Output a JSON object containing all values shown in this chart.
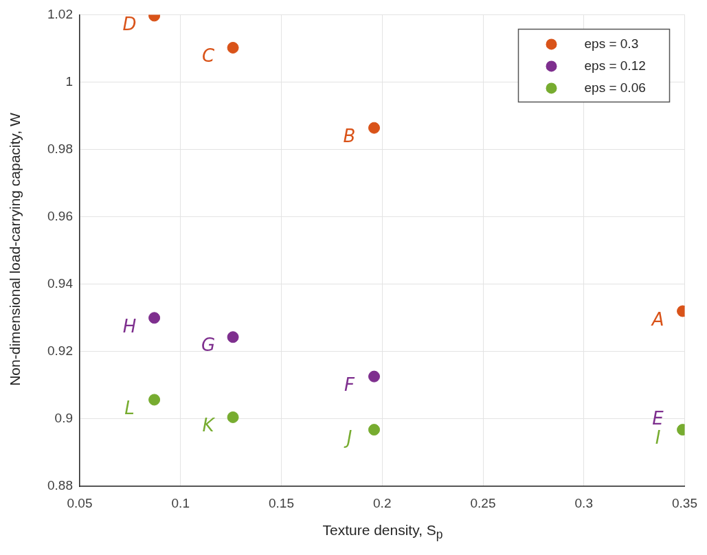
{
  "chart_data": {
    "type": "scatter",
    "xlabel": "Texture density, S$_{p}$",
    "ylabel": "Non-dimensional load-carrying capacity, W",
    "series": [
      {
        "name": "eps = 0.3",
        "color": "#d95319",
        "x": [
          0.349,
          0.196,
          0.126,
          0.087
        ],
        "values": [
          0.932,
          0.9864,
          1.0102,
          1.0197
        ],
        "value_labels": [
          "A",
          "B",
          "C",
          "D"
        ]
      },
      {
        "name": "eps = 0.12",
        "color": "#7e2f8e",
        "x": [
          0.196,
          0.126,
          0.087
        ],
        "values": [
          0.9126,
          0.9243,
          0.93
        ],
        "value_labels": [
          "F",
          "G",
          "H"
        ]
      },
      {
        "name": "eps = 0.06",
        "color": "#77ac30",
        "x": [
          0.349,
          0.196,
          0.126,
          0.087
        ],
        "values": [
          0.8968,
          0.8968,
          0.9005,
          0.9057
        ],
        "value_labels": [
          "I",
          "J",
          "K",
          "L"
        ]
      }
    ],
    "annotations": [
      {
        "text": "E",
        "x": 0.349,
        "y": 0.8968
      }
    ],
    "xlim": [
      0.05,
      0.35
    ],
    "xticks": [
      0.05,
      0.1,
      0.15,
      0.2,
      0.25,
      0.3,
      0.35
    ],
    "ylim": [
      0.88,
      1.02
    ],
    "yticks": [
      0.88,
      0.9,
      0.92,
      0.94,
      0.96,
      0.98,
      1,
      1.02
    ],
    "grid": true,
    "legend": "top right",
    "marker": "circle"
  }
}
